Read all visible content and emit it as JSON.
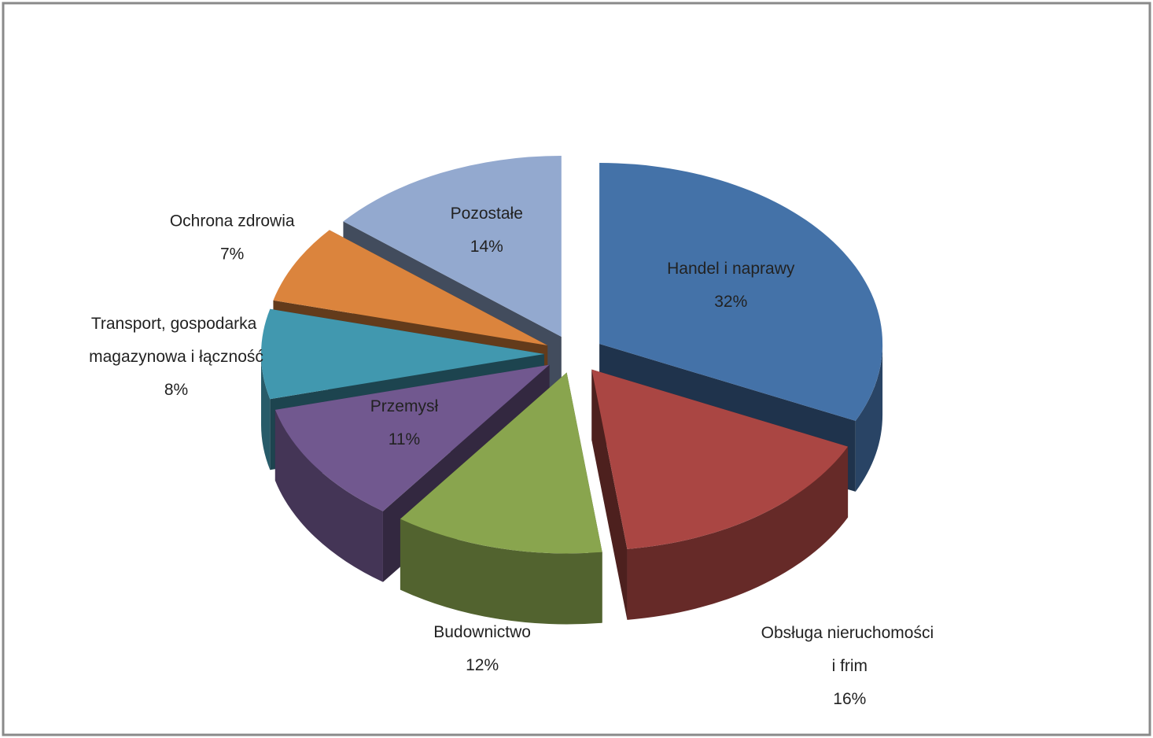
{
  "chart_data": {
    "type": "pie3d",
    "categories": [
      "Handel i naprawy",
      "Obsługa nieruchomości i frim",
      "Budownictwo",
      "Przemysł",
      "Transport, gospodarka magazynowa i łączność",
      "Ochrona zdrowia",
      "Pozostałe"
    ],
    "values": [
      32,
      16,
      12,
      11,
      8,
      7,
      14
    ],
    "value_labels": [
      "32%",
      "16%",
      "12%",
      "11%",
      "8%",
      "7%",
      "14%"
    ],
    "colors": [
      "#4472a8",
      "#aa4643",
      "#89a54e",
      "#71588f",
      "#4198af",
      "#db843d",
      "#93a9cf"
    ]
  }
}
